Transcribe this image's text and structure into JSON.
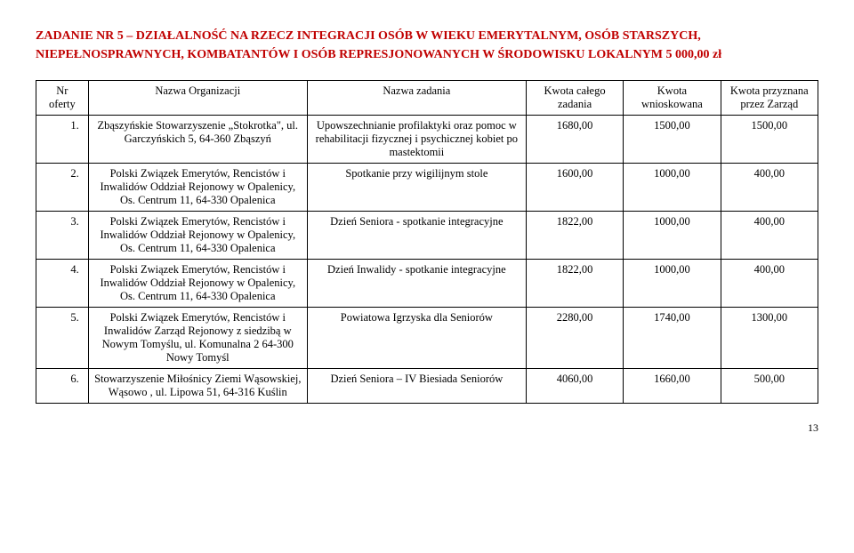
{
  "title_line1": "ZADANIE NR 5   – DZIAŁALNOŚĆ NA RZECZ INTEGRACJI OSÓB W WIEKU EMERYTALNYM, OSÓB STARSZYCH,",
  "title_line2": "NIEPEŁNOSPRAWNYCH, KOMBATANTÓW I OSÓB REPRESJONOWANYCH W ŚRODOWISKU LOKALNYM   5 000,00 zł",
  "headers": {
    "nr": "Nr oferty",
    "org": "Nazwa Organizacji",
    "task": "Nazwa zadania",
    "total": "Kwota całego zadania",
    "requested": "Kwota wnioskowana",
    "granted": "Kwota przyznana przez Zarząd"
  },
  "rows": [
    {
      "nr": "1.",
      "org": "Zbąszyńskie Stowarzyszenie „Stokrotka\", ul. Garczyńskich 5, 64-360 Zbąszyń",
      "task": "Upowszechnianie profilaktyki oraz pomoc w rehabilitacji fizycznej i psychicznej kobiet po mastektomii",
      "total": "1680,00",
      "requested": "1500,00",
      "granted": "1500,00"
    },
    {
      "nr": "2.",
      "org": "Polski Związek Emerytów, Rencistów i Inwalidów Oddział Rejonowy w Opalenicy, Os. Centrum 11, 64-330 Opalenica",
      "task": "Spotkanie przy wigilijnym stole",
      "total": "1600,00",
      "requested": "1000,00",
      "granted": "400,00"
    },
    {
      "nr": "3.",
      "org": "Polski Związek Emerytów, Rencistów i Inwalidów Oddział Rejonowy w Opalenicy, Os. Centrum 11, 64-330 Opalenica",
      "task": "Dzień Seniora - spotkanie integracyjne",
      "total": "1822,00",
      "requested": "1000,00",
      "granted": "400,00"
    },
    {
      "nr": "4.",
      "org": "Polski Związek Emerytów, Rencistów i Inwalidów Oddział Rejonowy w Opalenicy, Os. Centrum 11, 64-330 Opalenica",
      "task": "Dzień Inwalidy - spotkanie integracyjne",
      "total": "1822,00",
      "requested": "1000,00",
      "granted": "400,00"
    },
    {
      "nr": "5.",
      "org": "Polski Związek Emerytów, Rencistów i Inwalidów Zarząd Rejonowy z siedzibą w Nowym Tomyślu, ul. Komunalna 2 64-300 Nowy Tomyśl",
      "task": "Powiatowa Igrzyska dla Seniorów",
      "total": "2280,00",
      "requested": "1740,00",
      "granted": "1300,00"
    },
    {
      "nr": "6.",
      "org": "Stowarzyszenie Miłośnicy Ziemi Wąsowskiej, Wąsowo , ul. Lipowa 51, 64-316 Kuślin",
      "task": "Dzień Seniora – IV Biesiada Seniorów",
      "total": "4060,00",
      "requested": "1660,00",
      "granted": "500,00"
    }
  ],
  "page_number": "13",
  "colors": {
    "title": "#c00000",
    "border": "#000000",
    "text": "#000000",
    "background": "#ffffff"
  }
}
